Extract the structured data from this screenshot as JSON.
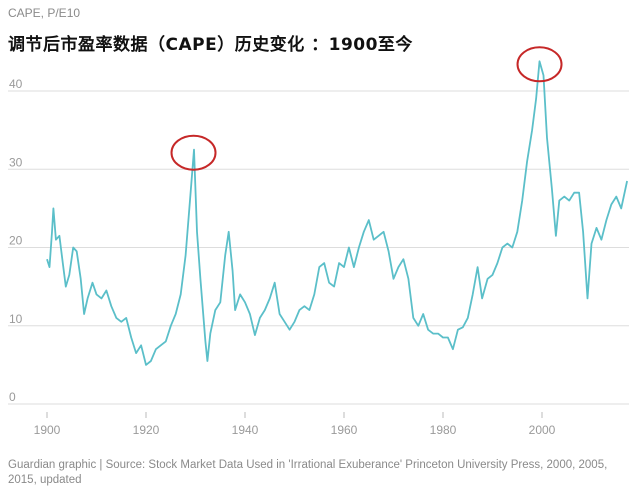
{
  "header": {
    "unit_label": "CAPE, P/E10",
    "title": "调节后市盈率数据（CAPE）历史变化 ：1900至今"
  },
  "footer": {
    "source": "Guardian graphic | Source: Stock Market Data Used in 'Irrational Exuberance' Princeton University Press, 2000, 2005, 2015, updated"
  },
  "colors": {
    "line": "#5bbfc9",
    "grid": "#dddddd",
    "highlight_circle": "#c62828"
  },
  "chart_data": {
    "type": "line",
    "title": "调节后市盈率数据（CAPE）历史变化 ：1900至今",
    "ylabel": "CAPE, P/E10",
    "xlim": [
      1899,
      2018
    ],
    "ylim": [
      0,
      45
    ],
    "x_ticks": [
      1900,
      1920,
      1940,
      1960,
      1980,
      2000
    ],
    "y_ticks": [
      0,
      10,
      20,
      30,
      40
    ],
    "grid": "horizontal",
    "series": [
      {
        "values": [
          [
            1900.0,
            18.5
          ],
          [
            1900.5,
            17.5
          ],
          [
            1901.0,
            22.0
          ],
          [
            1901.3,
            25.0
          ],
          [
            1901.8,
            21.0
          ],
          [
            1902.5,
            21.5
          ],
          [
            1903.2,
            18.0
          ],
          [
            1903.8,
            15.0
          ],
          [
            1904.5,
            16.5
          ],
          [
            1905.3,
            20.0
          ],
          [
            1906.0,
            19.5
          ],
          [
            1906.8,
            16.0
          ],
          [
            1907.5,
            11.5
          ],
          [
            1908.2,
            13.5
          ],
          [
            1909.2,
            15.5
          ],
          [
            1910.0,
            14.0
          ],
          [
            1911.0,
            13.5
          ],
          [
            1912.0,
            14.5
          ],
          [
            1913.0,
            12.5
          ],
          [
            1914.0,
            11.0
          ],
          [
            1915.0,
            10.5
          ],
          [
            1916.0,
            11.0
          ],
          [
            1917.0,
            8.5
          ],
          [
            1918.0,
            6.5
          ],
          [
            1919.0,
            7.5
          ],
          [
            1920.0,
            5.0
          ],
          [
            1921.0,
            5.5
          ],
          [
            1922.0,
            7.0
          ],
          [
            1923.0,
            7.5
          ],
          [
            1924.0,
            8.0
          ],
          [
            1925.0,
            10.0
          ],
          [
            1926.0,
            11.5
          ],
          [
            1927.0,
            14.0
          ],
          [
            1928.0,
            19.0
          ],
          [
            1929.0,
            27.0
          ],
          [
            1929.7,
            32.5
          ],
          [
            1930.3,
            22.0
          ],
          [
            1931.0,
            16.0
          ],
          [
            1932.0,
            8.0
          ],
          [
            1932.4,
            5.5
          ],
          [
            1933.0,
            9.0
          ],
          [
            1934.0,
            12.0
          ],
          [
            1935.0,
            13.0
          ],
          [
            1936.0,
            19.0
          ],
          [
            1936.7,
            22.0
          ],
          [
            1937.5,
            17.0
          ],
          [
            1938.0,
            12.0
          ],
          [
            1939.0,
            14.0
          ],
          [
            1940.0,
            13.0
          ],
          [
            1941.0,
            11.5
          ],
          [
            1942.0,
            8.8
          ],
          [
            1943.0,
            11.0
          ],
          [
            1944.0,
            12.0
          ],
          [
            1945.0,
            13.5
          ],
          [
            1946.0,
            15.5
          ],
          [
            1947.0,
            11.5
          ],
          [
            1948.0,
            10.5
          ],
          [
            1949.0,
            9.5
          ],
          [
            1950.0,
            10.5
          ],
          [
            1951.0,
            12.0
          ],
          [
            1952.0,
            12.5
          ],
          [
            1953.0,
            12.0
          ],
          [
            1954.0,
            14.0
          ],
          [
            1955.0,
            17.5
          ],
          [
            1956.0,
            18.0
          ],
          [
            1957.0,
            15.5
          ],
          [
            1958.0,
            15.0
          ],
          [
            1959.0,
            18.0
          ],
          [
            1960.0,
            17.5
          ],
          [
            1961.0,
            20.0
          ],
          [
            1962.0,
            17.5
          ],
          [
            1963.0,
            20.0
          ],
          [
            1964.0,
            22.0
          ],
          [
            1965.0,
            23.5
          ],
          [
            1966.0,
            21.0
          ],
          [
            1967.0,
            21.5
          ],
          [
            1968.0,
            22.0
          ],
          [
            1969.0,
            19.5
          ],
          [
            1970.0,
            16.0
          ],
          [
            1971.0,
            17.5
          ],
          [
            1972.0,
            18.5
          ],
          [
            1973.0,
            16.0
          ],
          [
            1974.0,
            11.0
          ],
          [
            1975.0,
            10.0
          ],
          [
            1976.0,
            11.5
          ],
          [
            1977.0,
            9.5
          ],
          [
            1978.0,
            9.0
          ],
          [
            1979.0,
            9.0
          ],
          [
            1980.0,
            8.5
          ],
          [
            1981.0,
            8.5
          ],
          [
            1982.0,
            7.0
          ],
          [
            1983.0,
            9.5
          ],
          [
            1984.0,
            9.8
          ],
          [
            1985.0,
            11.0
          ],
          [
            1986.0,
            14.0
          ],
          [
            1987.0,
            17.5
          ],
          [
            1987.9,
            13.5
          ],
          [
            1989.0,
            16.0
          ],
          [
            1990.0,
            16.5
          ],
          [
            1991.0,
            18.0
          ],
          [
            1992.0,
            20.0
          ],
          [
            1993.0,
            20.5
          ],
          [
            1994.0,
            20.0
          ],
          [
            1995.0,
            22.0
          ],
          [
            1996.0,
            26.0
          ],
          [
            1997.0,
            31.0
          ],
          [
            1998.0,
            35.0
          ],
          [
            1998.8,
            39.0
          ],
          [
            1999.5,
            43.8
          ],
          [
            2000.3,
            42.0
          ],
          [
            2001.0,
            34.0
          ],
          [
            2002.0,
            27.5
          ],
          [
            2002.8,
            21.5
          ],
          [
            2003.5,
            26.0
          ],
          [
            2004.5,
            26.5
          ],
          [
            2005.5,
            26.0
          ],
          [
            2006.5,
            27.0
          ],
          [
            2007.5,
            27.0
          ],
          [
            2008.3,
            22.0
          ],
          [
            2009.2,
            13.5
          ],
          [
            2010.0,
            20.5
          ],
          [
            2011.0,
            22.5
          ],
          [
            2012.0,
            21.0
          ],
          [
            2013.0,
            23.5
          ],
          [
            2014.0,
            25.5
          ],
          [
            2015.0,
            26.5
          ],
          [
            2016.0,
            25.0
          ],
          [
            2017.2,
            28.5
          ]
        ]
      }
    ],
    "highlights": [
      {
        "x": 1929.7,
        "y": 32.5
      },
      {
        "x": 1999.5,
        "y": 43.8
      }
    ]
  }
}
